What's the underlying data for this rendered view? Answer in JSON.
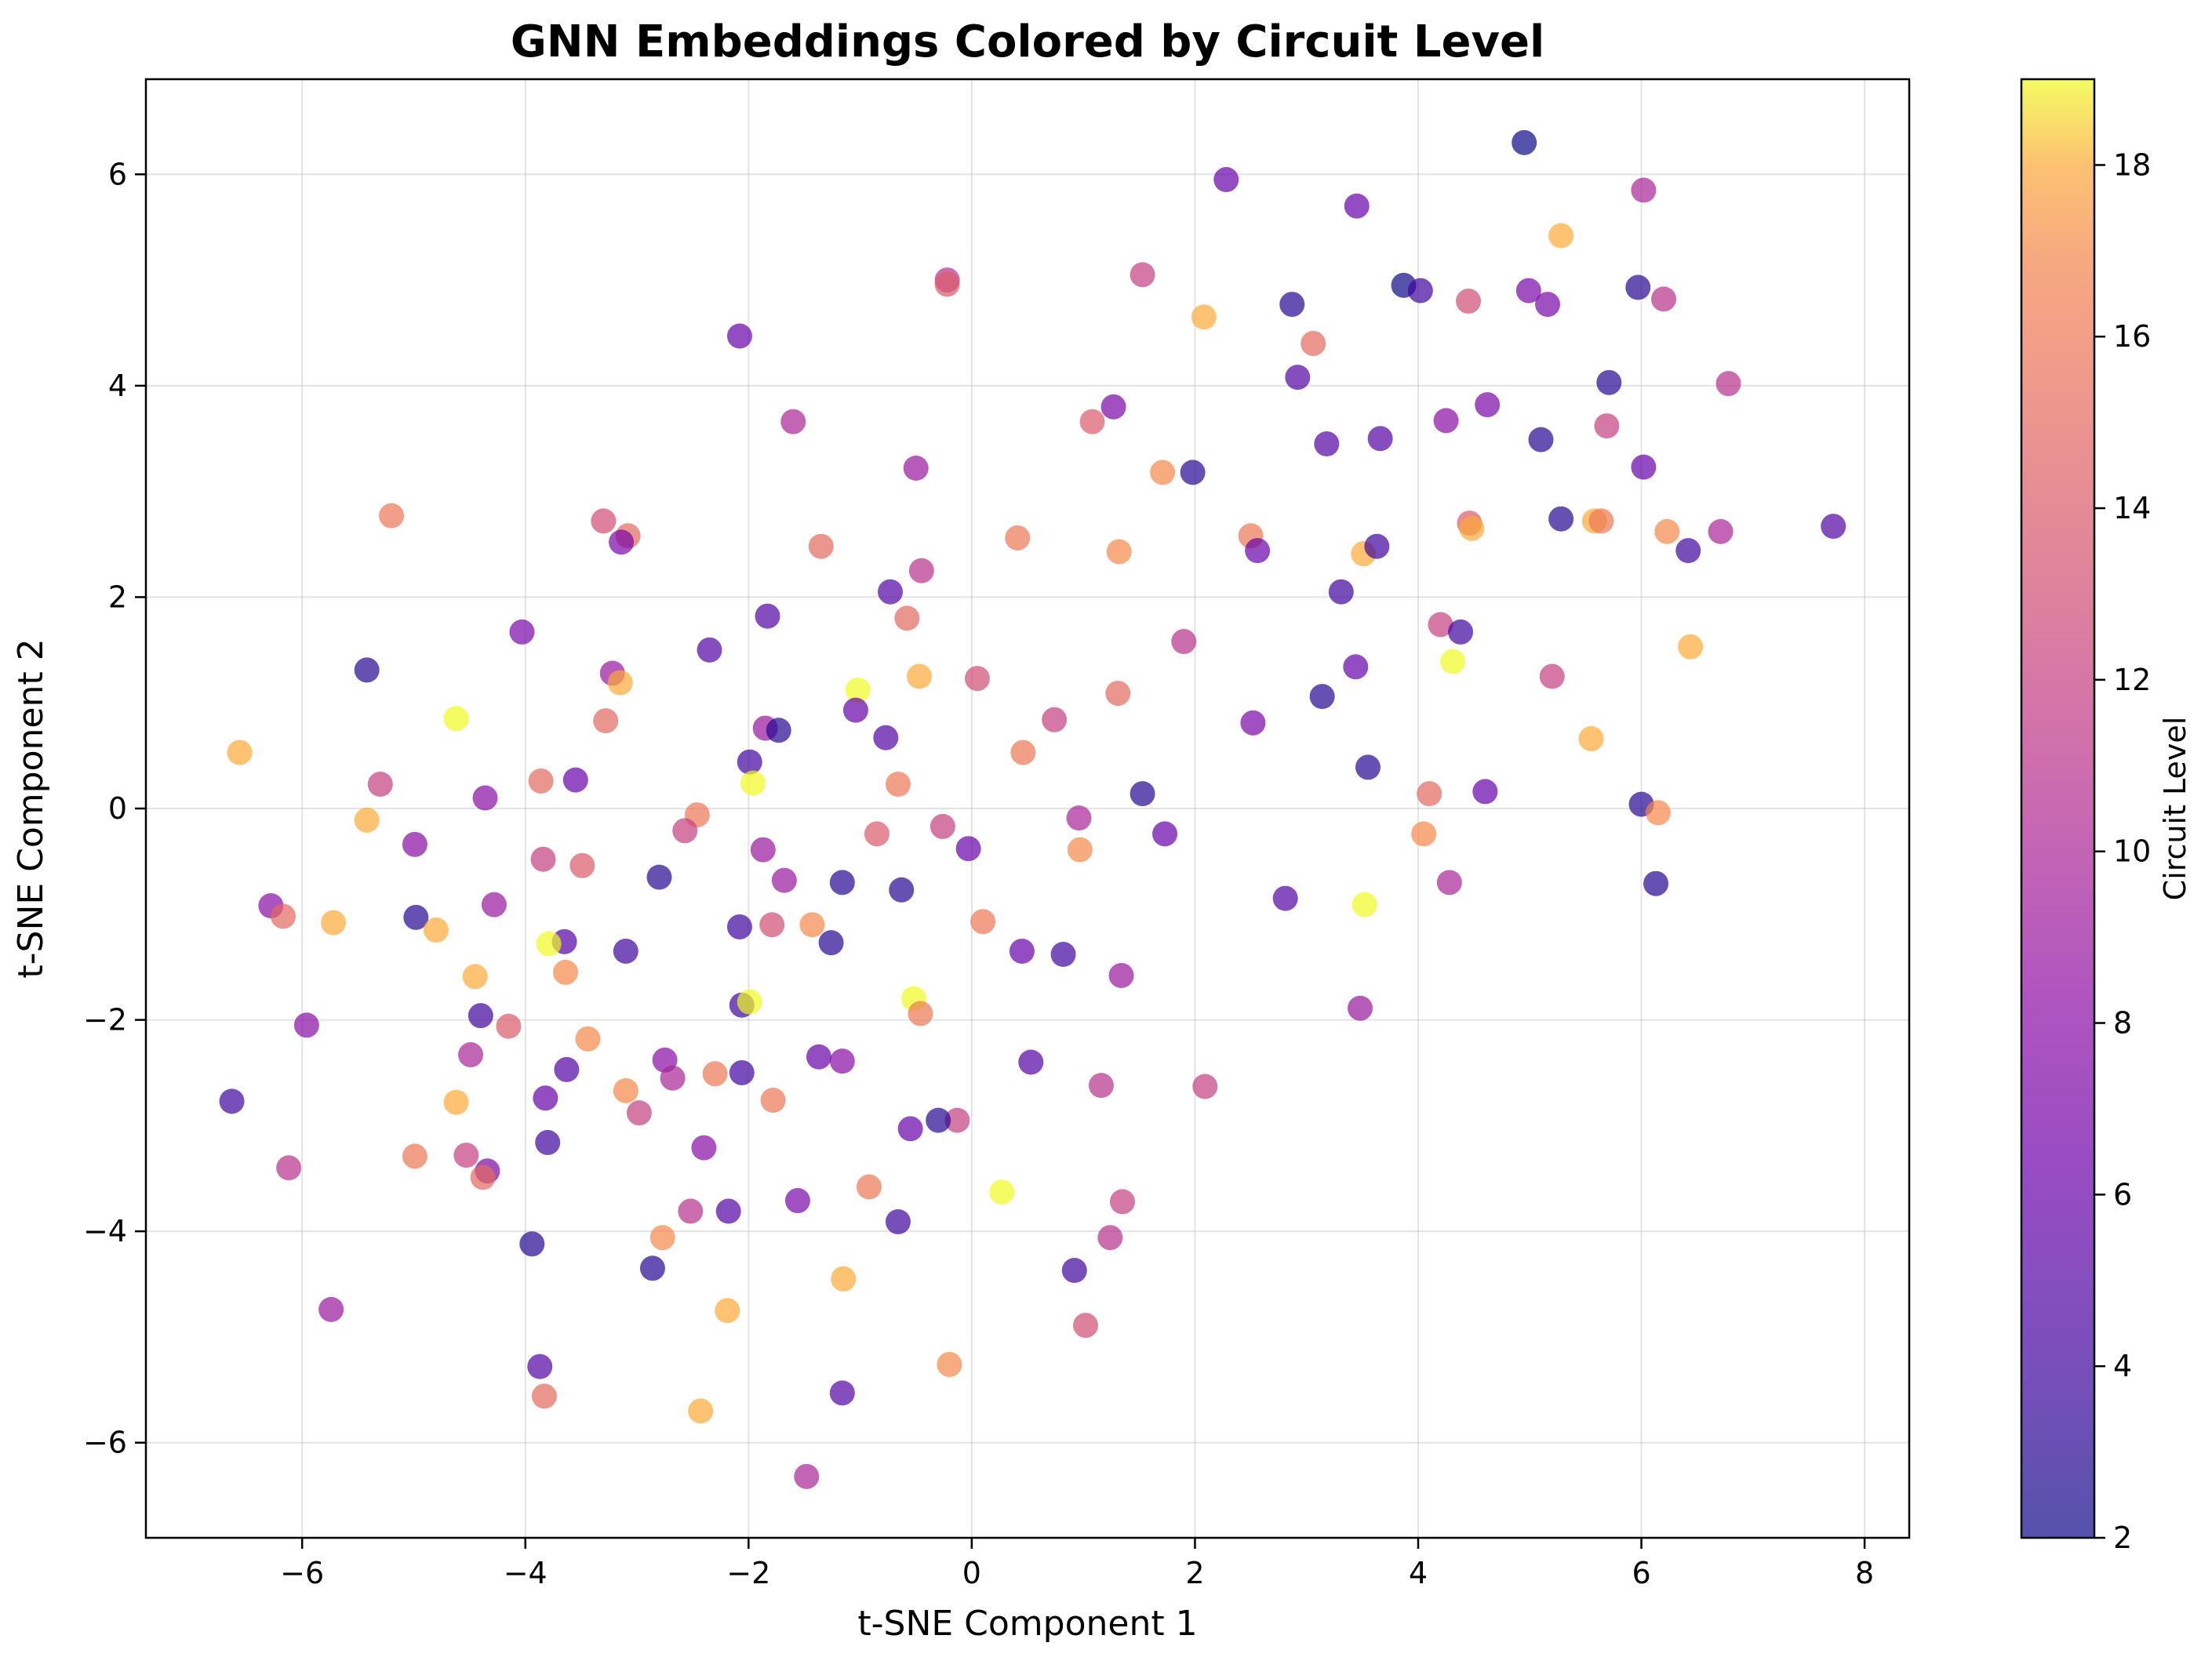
{
  "chart_data": {
    "type": "scatter",
    "title": "GNN Embeddings Colored by Circuit Level",
    "xlabel": "t-SNE Component 1",
    "ylabel": "t-SNE Component 2",
    "xlim": [
      -7.4,
      8.4
    ],
    "ylim": [
      -6.9,
      6.9
    ],
    "xticks": [
      -6,
      -4,
      -2,
      0,
      2,
      4,
      6,
      8
    ],
    "yticks": [
      -6,
      -4,
      -2,
      0,
      2,
      4,
      6
    ],
    "grid": true,
    "colormap": "plasma",
    "point_alpha": 0.7,
    "colorbar": {
      "label": "Circuit Level",
      "range": [
        2,
        19
      ],
      "ticks": [
        2,
        4,
        6,
        8,
        10,
        12,
        14,
        16,
        18
      ]
    },
    "points": [
      {
        "x": 4.95,
        "y": 6.3,
        "c": 2
      },
      {
        "x": 2.28,
        "y": 5.95,
        "c": 6
      },
      {
        "x": 6.02,
        "y": 5.85,
        "c": 10
      },
      {
        "x": 3.45,
        "y": 5.7,
        "c": 6
      },
      {
        "x": 5.28,
        "y": 5.42,
        "c": 18
      },
      {
        "x": 1.53,
        "y": 5.05,
        "c": 12
      },
      {
        "x": -0.22,
        "y": 5.0,
        "c": 11
      },
      {
        "x": -0.22,
        "y": 4.96,
        "c": 14
      },
      {
        "x": 3.87,
        "y": 4.95,
        "c": 2
      },
      {
        "x": 4.02,
        "y": 4.9,
        "c": 4
      },
      {
        "x": 5.97,
        "y": 4.93,
        "c": 3
      },
      {
        "x": 4.99,
        "y": 4.9,
        "c": 7
      },
      {
        "x": 6.2,
        "y": 4.82,
        "c": 11
      },
      {
        "x": 2.87,
        "y": 4.77,
        "c": 3
      },
      {
        "x": 5.16,
        "y": 4.77,
        "c": 7
      },
      {
        "x": 4.45,
        "y": 4.8,
        "c": 13
      },
      {
        "x": -2.08,
        "y": 4.47,
        "c": 6
      },
      {
        "x": 3.06,
        "y": 4.4,
        "c": 15
      },
      {
        "x": 2.08,
        "y": 4.65,
        "c": 18
      },
      {
        "x": 2.92,
        "y": 4.08,
        "c": 5
      },
      {
        "x": 5.71,
        "y": 4.03,
        "c": 3
      },
      {
        "x": 6.78,
        "y": 4.02,
        "c": 11
      },
      {
        "x": 1.27,
        "y": 3.8,
        "c": 7
      },
      {
        "x": 4.62,
        "y": 3.82,
        "c": 7
      },
      {
        "x": -1.6,
        "y": 3.66,
        "c": 10
      },
      {
        "x": 1.08,
        "y": 3.66,
        "c": 14
      },
      {
        "x": 4.25,
        "y": 3.67,
        "c": 8
      },
      {
        "x": 5.69,
        "y": 3.62,
        "c": 12
      },
      {
        "x": 3.18,
        "y": 3.45,
        "c": 5
      },
      {
        "x": 3.66,
        "y": 3.5,
        "c": 5
      },
      {
        "x": 5.1,
        "y": 3.49,
        "c": 3
      },
      {
        "x": -0.5,
        "y": 3.22,
        "c": 9
      },
      {
        "x": 1.71,
        "y": 3.18,
        "c": 17
      },
      {
        "x": 1.98,
        "y": 3.18,
        "c": 3
      },
      {
        "x": 6.02,
        "y": 3.23,
        "c": 6
      },
      {
        "x": -5.2,
        "y": 2.77,
        "c": 16
      },
      {
        "x": -3.3,
        "y": 2.72,
        "c": 13
      },
      {
        "x": -3.08,
        "y": 2.58,
        "c": 15
      },
      {
        "x": -3.14,
        "y": 2.52,
        "c": 7
      },
      {
        "x": 4.46,
        "y": 2.7,
        "c": 14
      },
      {
        "x": 5.28,
        "y": 2.74,
        "c": 3
      },
      {
        "x": 5.58,
        "y": 2.72,
        "c": 18
      },
      {
        "x": 5.64,
        "y": 2.72,
        "c": 16
      },
      {
        "x": 7.72,
        "y": 2.67,
        "c": 5
      },
      {
        "x": 0.41,
        "y": 2.56,
        "c": 16
      },
      {
        "x": 2.5,
        "y": 2.58,
        "c": 16
      },
      {
        "x": 4.48,
        "y": 2.65,
        "c": 18
      },
      {
        "x": 6.23,
        "y": 2.62,
        "c": 17
      },
      {
        "x": 6.71,
        "y": 2.62,
        "c": 10
      },
      {
        "x": -1.35,
        "y": 2.48,
        "c": 15
      },
      {
        "x": 1.32,
        "y": 2.43,
        "c": 17
      },
      {
        "x": 2.56,
        "y": 2.44,
        "c": 6
      },
      {
        "x": 3.51,
        "y": 2.41,
        "c": 18
      },
      {
        "x": 3.63,
        "y": 2.48,
        "c": 4
      },
      {
        "x": 6.42,
        "y": 2.44,
        "c": 4
      },
      {
        "x": -0.45,
        "y": 2.25,
        "c": 11
      },
      {
        "x": -0.73,
        "y": 2.05,
        "c": 5
      },
      {
        "x": 3.31,
        "y": 2.05,
        "c": 4
      },
      {
        "x": -1.83,
        "y": 1.82,
        "c": 5
      },
      {
        "x": -0.58,
        "y": 1.8,
        "c": 15
      },
      {
        "x": 4.2,
        "y": 1.74,
        "c": 12
      },
      {
        "x": 4.38,
        "y": 1.67,
        "c": 4
      },
      {
        "x": -4.03,
        "y": 1.67,
        "c": 7
      },
      {
        "x": 1.9,
        "y": 1.58,
        "c": 11
      },
      {
        "x": 6.44,
        "y": 1.53,
        "c": 18
      },
      {
        "x": -2.35,
        "y": 1.5,
        "c": 5
      },
      {
        "x": 4.31,
        "y": 1.39,
        "c": 19
      },
      {
        "x": -5.42,
        "y": 1.31,
        "c": 3
      },
      {
        "x": -3.22,
        "y": 1.28,
        "c": 9
      },
      {
        "x": -3.15,
        "y": 1.19,
        "c": 18
      },
      {
        "x": -0.47,
        "y": 1.25,
        "c": 18
      },
      {
        "x": 0.05,
        "y": 1.23,
        "c": 13
      },
      {
        "x": 3.44,
        "y": 1.34,
        "c": 6
      },
      {
        "x": 5.2,
        "y": 1.25,
        "c": 12
      },
      {
        "x": -1.02,
        "y": 1.12,
        "c": 19
      },
      {
        "x": 1.31,
        "y": 1.09,
        "c": 15
      },
      {
        "x": 3.14,
        "y": 1.06,
        "c": 3
      },
      {
        "x": -1.04,
        "y": 0.93,
        "c": 6
      },
      {
        "x": -4.62,
        "y": 0.85,
        "c": 19
      },
      {
        "x": -3.28,
        "y": 0.83,
        "c": 15
      },
      {
        "x": 0.74,
        "y": 0.84,
        "c": 12
      },
      {
        "x": 2.52,
        "y": 0.81,
        "c": 7
      },
      {
        "x": -1.85,
        "y": 0.76,
        "c": 9
      },
      {
        "x": -1.73,
        "y": 0.74,
        "c": 3
      },
      {
        "x": -0.77,
        "y": 0.67,
        "c": 5
      },
      {
        "x": 5.55,
        "y": 0.66,
        "c": 18
      },
      {
        "x": -6.56,
        "y": 0.53,
        "c": 18
      },
      {
        "x": 0.46,
        "y": 0.53,
        "c": 16
      },
      {
        "x": -1.99,
        "y": 0.44,
        "c": 4
      },
      {
        "x": 3.55,
        "y": 0.39,
        "c": 3
      },
      {
        "x": -3.55,
        "y": 0.27,
        "c": 6
      },
      {
        "x": -5.3,
        "y": 0.23,
        "c": 12
      },
      {
        "x": -3.86,
        "y": 0.26,
        "c": 15
      },
      {
        "x": -1.96,
        "y": 0.24,
        "c": 19
      },
      {
        "x": -0.66,
        "y": 0.23,
        "c": 16
      },
      {
        "x": -4.36,
        "y": 0.1,
        "c": 8
      },
      {
        "x": 1.53,
        "y": 0.14,
        "c": 3
      },
      {
        "x": 4.1,
        "y": 0.14,
        "c": 15
      },
      {
        "x": 4.6,
        "y": 0.16,
        "c": 6
      },
      {
        "x": 6.0,
        "y": 0.04,
        "c": 3
      },
      {
        "x": -2.46,
        "y": -0.06,
        "c": 16
      },
      {
        "x": 0.96,
        "y": -0.09,
        "c": 10
      },
      {
        "x": 6.15,
        "y": -0.04,
        "c": 17
      },
      {
        "x": -5.42,
        "y": -0.11,
        "c": 18
      },
      {
        "x": -2.57,
        "y": -0.21,
        "c": 12
      },
      {
        "x": -0.85,
        "y": -0.24,
        "c": 14
      },
      {
        "x": -0.26,
        "y": -0.17,
        "c": 12
      },
      {
        "x": 1.73,
        "y": -0.24,
        "c": 6
      },
      {
        "x": 4.05,
        "y": -0.24,
        "c": 17
      },
      {
        "x": -4.99,
        "y": -0.34,
        "c": 8
      },
      {
        "x": -1.87,
        "y": -0.39,
        "c": 9
      },
      {
        "x": -0.03,
        "y": -0.38,
        "c": 6
      },
      {
        "x": 0.97,
        "y": -0.39,
        "c": 17
      },
      {
        "x": -3.84,
        "y": -0.48,
        "c": 12
      },
      {
        "x": -3.49,
        "y": -0.54,
        "c": 14
      },
      {
        "x": -2.8,
        "y": -0.65,
        "c": 3
      },
      {
        "x": -1.68,
        "y": -0.68,
        "c": 9
      },
      {
        "x": -1.16,
        "y": -0.7,
        "c": 3
      },
      {
        "x": -0.63,
        "y": -0.77,
        "c": 3
      },
      {
        "x": 4.28,
        "y": -0.7,
        "c": 10
      },
      {
        "x": 6.13,
        "y": -0.71,
        "c": 3
      },
      {
        "x": 2.81,
        "y": -0.85,
        "c": 5
      },
      {
        "x": 3.52,
        "y": -0.91,
        "c": 19
      },
      {
        "x": -6.28,
        "y": -0.92,
        "c": 8
      },
      {
        "x": -4.28,
        "y": -0.91,
        "c": 9
      },
      {
        "x": -6.17,
        "y": -1.02,
        "c": 15
      },
      {
        "x": -4.98,
        "y": -1.03,
        "c": 3
      },
      {
        "x": -5.72,
        "y": -1.08,
        "c": 18
      },
      {
        "x": -4.8,
        "y": -1.15,
        "c": 18
      },
      {
        "x": -2.08,
        "y": -1.12,
        "c": 4
      },
      {
        "x": -1.79,
        "y": -1.1,
        "c": 13
      },
      {
        "x": -1.43,
        "y": -1.1,
        "c": 17
      },
      {
        "x": 0.1,
        "y": -1.07,
        "c": 16
      },
      {
        "x": -3.65,
        "y": -1.26,
        "c": 5
      },
      {
        "x": -3.79,
        "y": -1.28,
        "c": 19
      },
      {
        "x": -1.26,
        "y": -1.27,
        "c": 3
      },
      {
        "x": -3.1,
        "y": -1.35,
        "c": 4
      },
      {
        "x": 0.45,
        "y": -1.35,
        "c": 6
      },
      {
        "x": 0.82,
        "y": -1.38,
        "c": 4
      },
      {
        "x": -3.64,
        "y": -1.55,
        "c": 17
      },
      {
        "x": -4.45,
        "y": -1.59,
        "c": 18
      },
      {
        "x": 1.34,
        "y": -1.58,
        "c": 9
      },
      {
        "x": -0.52,
        "y": -1.8,
        "c": 19
      },
      {
        "x": -2.06,
        "y": -1.86,
        "c": 4
      },
      {
        "x": -1.99,
        "y": -1.83,
        "c": 19
      },
      {
        "x": -0.46,
        "y": -1.94,
        "c": 16
      },
      {
        "x": 3.48,
        "y": -1.89,
        "c": 9
      },
      {
        "x": -4.4,
        "y": -1.96,
        "c": 4
      },
      {
        "x": -5.96,
        "y": -2.05,
        "c": 8
      },
      {
        "x": -4.15,
        "y": -2.06,
        "c": 14
      },
      {
        "x": -3.44,
        "y": -2.18,
        "c": 17
      },
      {
        "x": -4.49,
        "y": -2.33,
        "c": 10
      },
      {
        "x": -2.75,
        "y": -2.38,
        "c": 8
      },
      {
        "x": -1.37,
        "y": -2.35,
        "c": 6
      },
      {
        "x": -1.16,
        "y": -2.39,
        "c": 8
      },
      {
        "x": 0.53,
        "y": -2.4,
        "c": 5
      },
      {
        "x": -3.63,
        "y": -2.47,
        "c": 5
      },
      {
        "x": -2.68,
        "y": -2.55,
        "c": 10
      },
      {
        "x": -2.3,
        "y": -2.51,
        "c": 16
      },
      {
        "x": -2.06,
        "y": -2.5,
        "c": 4
      },
      {
        "x": 1.16,
        "y": -2.62,
        "c": 11
      },
      {
        "x": 2.09,
        "y": -2.63,
        "c": 12
      },
      {
        "x": -6.63,
        "y": -2.77,
        "c": 4
      },
      {
        "x": -3.82,
        "y": -2.74,
        "c": 6
      },
      {
        "x": -3.1,
        "y": -2.67,
        "c": 17
      },
      {
        "x": -1.78,
        "y": -2.76,
        "c": 16
      },
      {
        "x": -4.62,
        "y": -2.78,
        "c": 18
      },
      {
        "x": -2.98,
        "y": -2.88,
        "c": 12
      },
      {
        "x": -0.13,
        "y": -2.95,
        "c": 12
      },
      {
        "x": -0.3,
        "y": -2.95,
        "c": 3
      },
      {
        "x": -0.55,
        "y": -3.03,
        "c": 6
      },
      {
        "x": -3.8,
        "y": -3.16,
        "c": 4
      },
      {
        "x": -2.4,
        "y": -3.21,
        "c": 8
      },
      {
        "x": -4.99,
        "y": -3.29,
        "c": 16
      },
      {
        "x": -4.53,
        "y": -3.28,
        "c": 12
      },
      {
        "x": -6.12,
        "y": -3.4,
        "c": 11
      },
      {
        "x": -4.34,
        "y": -3.43,
        "c": 7
      },
      {
        "x": -4.38,
        "y": -3.49,
        "c": 15
      },
      {
        "x": -0.92,
        "y": -3.58,
        "c": 16
      },
      {
        "x": 0.27,
        "y": -3.63,
        "c": 19
      },
      {
        "x": -1.56,
        "y": -3.71,
        "c": 7
      },
      {
        "x": 1.35,
        "y": -3.72,
        "c": 12
      },
      {
        "x": -2.52,
        "y": -3.81,
        "c": 11
      },
      {
        "x": -2.18,
        "y": -3.81,
        "c": 5
      },
      {
        "x": -0.66,
        "y": -3.91,
        "c": 4
      },
      {
        "x": -2.77,
        "y": -4.06,
        "c": 17
      },
      {
        "x": 1.24,
        "y": -4.06,
        "c": 11
      },
      {
        "x": -3.94,
        "y": -4.12,
        "c": 3
      },
      {
        "x": -2.86,
        "y": -4.35,
        "c": 3
      },
      {
        "x": 0.92,
        "y": -4.37,
        "c": 4
      },
      {
        "x": -1.15,
        "y": -4.45,
        "c": 18
      },
      {
        "x": -5.74,
        "y": -4.74,
        "c": 9
      },
      {
        "x": -2.19,
        "y": -4.75,
        "c": 18
      },
      {
        "x": 1.02,
        "y": -4.89,
        "c": 13
      },
      {
        "x": -0.2,
        "y": -5.26,
        "c": 17
      },
      {
        "x": -3.87,
        "y": -5.28,
        "c": 5
      },
      {
        "x": -1.16,
        "y": -5.53,
        "c": 5
      },
      {
        "x": -3.83,
        "y": -5.56,
        "c": 15
      },
      {
        "x": -2.43,
        "y": -5.7,
        "c": 18
      },
      {
        "x": -1.48,
        "y": -6.32,
        "c": 10
      }
    ]
  }
}
